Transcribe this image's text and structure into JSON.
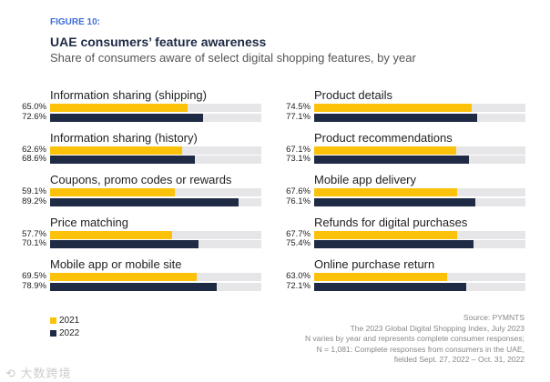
{
  "chart_data": {
    "type": "bar",
    "orientation": "horizontal",
    "figure_label": "FIGURE 10:",
    "title": "UAE consumers’ feature awareness",
    "subtitle": "Share of consumers aware of select digital shopping features, by year",
    "xlim": [
      0,
      100
    ],
    "categories": [
      "Information sharing (shipping)",
      "Information sharing (history)",
      "Coupons, promo codes or rewards",
      "Price matching",
      "Mobile app or mobile site",
      "Product details",
      "Product recommendations",
      "Mobile app delivery",
      "Refunds for digital purchases",
      "Online purchase return"
    ],
    "series": [
      {
        "name": "2021",
        "color": "#fcc20a",
        "values": [
          65.0,
          62.6,
          59.1,
          57.7,
          69.5,
          74.5,
          67.1,
          67.6,
          67.7,
          63.0
        ],
        "labels": [
          "65.0%",
          "62.6%",
          "59.1%",
          "57.7%",
          "69.5%",
          "74.5%",
          "67.1%",
          "67.6%",
          "67.7%",
          "63.0%"
        ]
      },
      {
        "name": "2022",
        "color": "#1f2a44",
        "values": [
          72.6,
          68.6,
          89.2,
          70.1,
          78.9,
          77.1,
          73.1,
          76.1,
          75.4,
          72.1
        ],
        "labels": [
          "72.6%",
          "68.6%",
          "89.2%",
          "70.1%",
          "78.9%",
          "77.1%",
          "73.1%",
          "76.1%",
          "75.4%",
          "72.1%"
        ]
      }
    ],
    "legend": {
      "position": "bottom-left",
      "items": [
        "2021",
        "2022"
      ]
    }
  },
  "source": [
    "Source: PYMNTS",
    "The 2023 Global Digital Shopping Index, July 2023",
    "N varies by year and represents complete consumer responses;",
    "N = 1,081: Complete responses from consumers in the UAE,",
    "fielded Sept. 27, 2022 – Oct. 31, 2022"
  ],
  "watermark": "大数跨境"
}
